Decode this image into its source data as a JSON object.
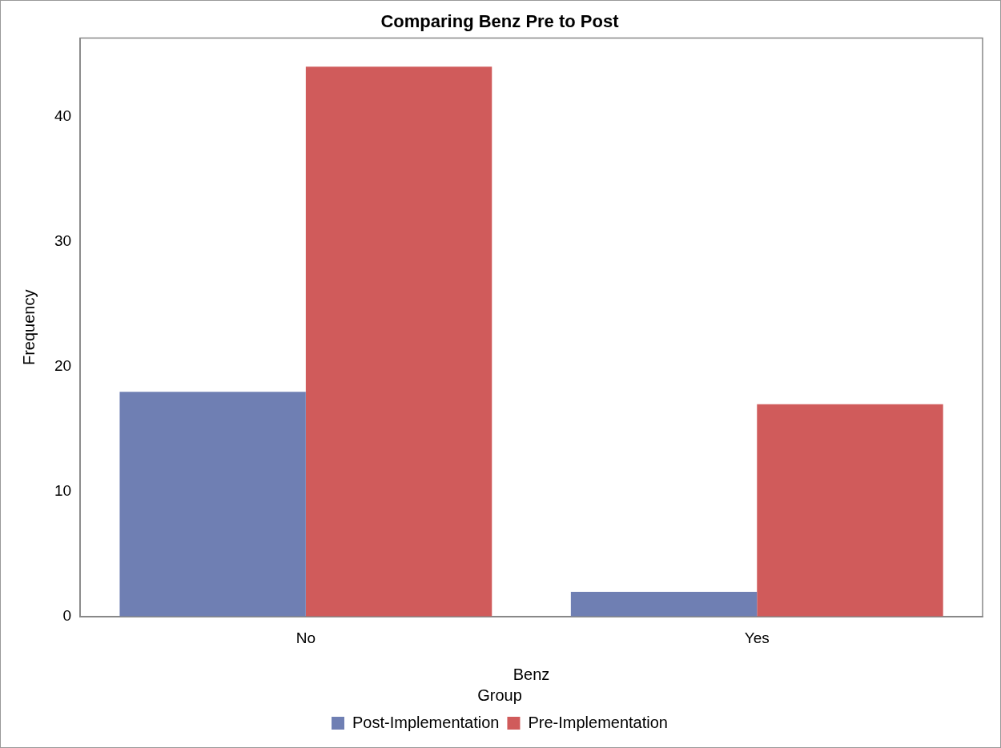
{
  "chart_data": {
    "type": "bar",
    "title": "Comparing Benz Pre to Post",
    "xlabel": "Benz",
    "ylabel": "Frequency",
    "legend_title": "Group",
    "categories": [
      "No",
      "Yes"
    ],
    "series": [
      {
        "name": "Post-Implementation",
        "color": "#6f7fb3",
        "values": [
          18,
          2
        ]
      },
      {
        "name": "Pre-Implementation",
        "color": "#d05b5b",
        "values": [
          44,
          17
        ]
      }
    ],
    "ylim": [
      0,
      46.3
    ],
    "yticks": [
      0,
      10,
      20,
      30,
      40
    ],
    "grid": false,
    "legend": "bottom"
  }
}
